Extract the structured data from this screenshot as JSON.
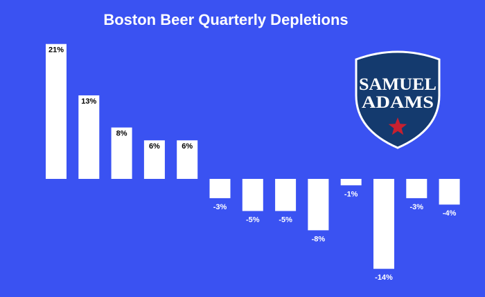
{
  "chart_data": {
    "type": "bar",
    "title": "Boston Beer Quarterly Depletions",
    "xlabel": "",
    "ylabel": "",
    "categories": [
      "",
      "",
      "",
      "",
      "",
      "",
      "",
      "",
      "",
      "",
      "",
      "",
      ""
    ],
    "values": [
      21,
      13,
      8,
      6,
      6,
      -3,
      -5,
      -5,
      -8,
      -1,
      -14,
      -3,
      -4
    ],
    "labels": [
      "21%",
      "13%",
      "8%",
      "6%",
      "6%",
      "-3%",
      "-5%",
      "-5%",
      "-8%",
      "-1%",
      "-14%",
      "-3%",
      "-4%"
    ],
    "grid": false,
    "legend": "none",
    "bar_color": "#ffffff",
    "background_color": "#3a52f2"
  },
  "logo": {
    "line1": "SAMUEL",
    "line2": "ADAMS",
    "shield_color": "#143a6e",
    "star_color": "#c8202f"
  }
}
